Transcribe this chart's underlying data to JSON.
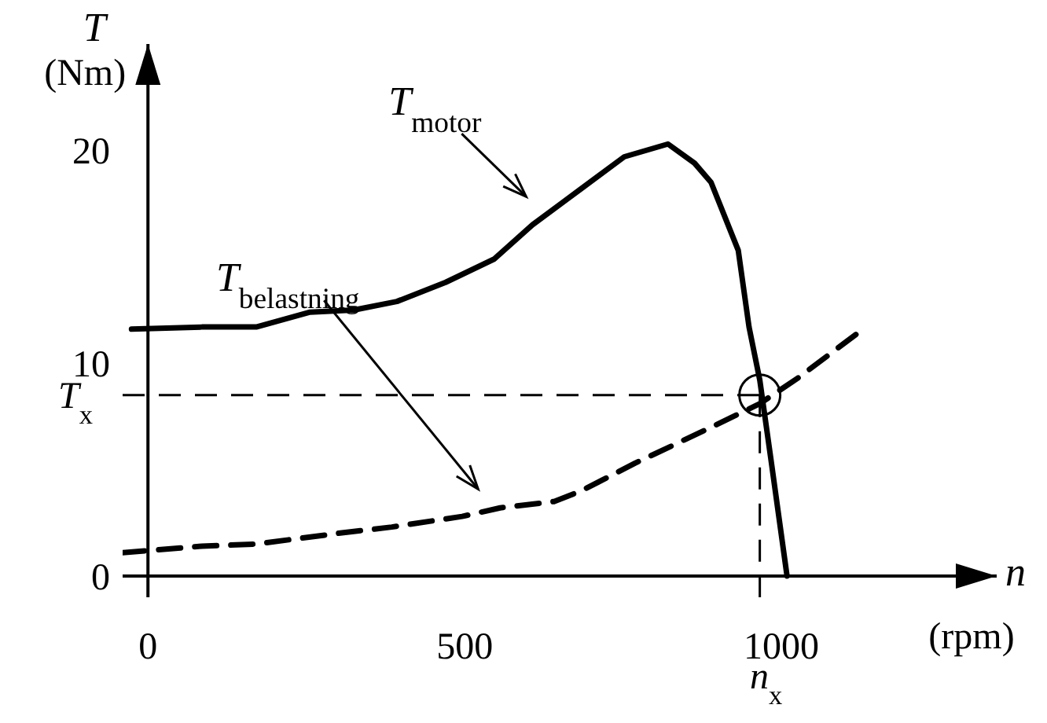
{
  "chart_data": {
    "type": "line",
    "xlabel": "n (rpm)",
    "ylabel": "T (Nm)",
    "xlim": [
      -40,
      1340
    ],
    "ylim": [
      -1,
      25
    ],
    "xticks": [
      0,
      500,
      1000
    ],
    "yticks": [
      0,
      10,
      20
    ],
    "marker": "none",
    "series": [
      {
        "name": "T$_{motor}$",
        "color": "#000000",
        "line_style": "solid",
        "x": [
          -26,
          85,
          171,
          256,
          325,
          393,
          470,
          547,
          607,
          684,
          752,
          821,
          863,
          889,
          932,
          949,
          966,
          983,
          1009
        ],
        "values": [
          11.6,
          11.7,
          11.7,
          12.4,
          12.5,
          12.9,
          13.8,
          14.9,
          16.5,
          18.2,
          19.7,
          20.3,
          19.4,
          18.5,
          15.3,
          11.7,
          9.2,
          5.6,
          0
        ]
      },
      {
        "name": "T$_{belastning}$",
        "color": "#000000",
        "line_style": "dashed",
        "x": [
          -40,
          85,
          171,
          299,
          385,
          496,
          556,
          641,
          684,
          769,
          897,
          966,
          1026,
          1120
        ],
        "values": [
          1.1,
          1.4,
          1.5,
          2.0,
          2.3,
          2.8,
          3.2,
          3.5,
          4.0,
          5.3,
          7.1,
          8.1,
          9.3,
          11.4
        ]
      }
    ],
    "ref_lines": [
      {
        "axis": "y",
        "value": 8.5,
        "label": "T$_{x}$",
        "line_style": "dashed",
        "color": "#000000"
      },
      {
        "axis": "x",
        "value": 966,
        "label": "n$_{x}$",
        "line_style": "dashed",
        "color": "#000000"
      }
    ]
  }
}
